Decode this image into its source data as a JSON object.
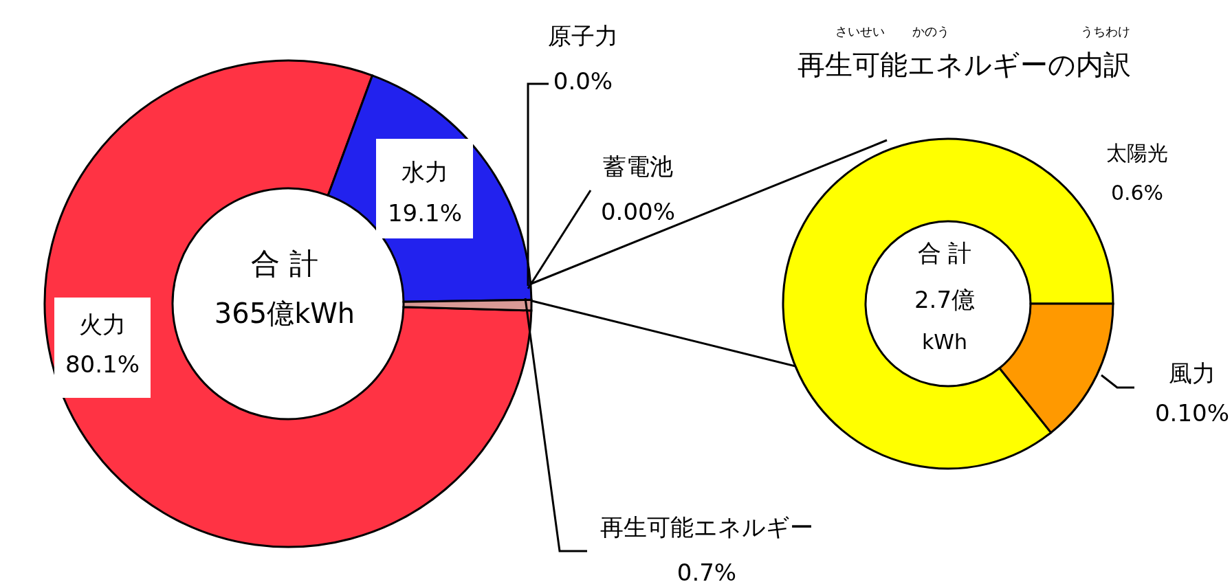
{
  "chart_data": [
    {
      "type": "donut",
      "categories": [
        "火力",
        "水力",
        "原子力",
        "蓄電池",
        "再生可能エネルギー"
      ],
      "values": [
        80.1,
        19.1,
        0.0,
        0.0,
        0.7
      ],
      "colors": [
        "#ff3344",
        "#2222ee",
        "#7a6499",
        "#4bacc6",
        "#d99a96"
      ],
      "value_labels": [
        "80.1%",
        "19.1%",
        "0.0%",
        "0.00%",
        "0.7%"
      ],
      "annotations": [
        "合 計",
        "365億kWh"
      ]
    },
    {
      "type": "donut",
      "title": "再生可能エネルギーの内訳",
      "categories": [
        "太陽光",
        "風力"
      ],
      "values": [
        0.6,
        0.1
      ],
      "colors": [
        "#ffff00",
        "#ff9900"
      ],
      "value_labels": [
        "0.6%",
        "0.10%"
      ],
      "annotations": [
        "さいせい",
        "かのう",
        "うちわけ",
        "合 計",
        "2.7億",
        "kWh"
      ]
    }
  ]
}
